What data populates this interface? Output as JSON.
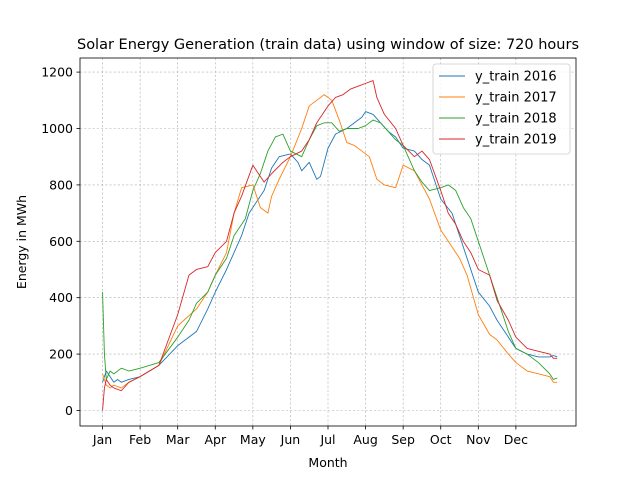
{
  "chart_data": {
    "type": "line",
    "title": "Solar Energy Generation (train data) using window of size: 720 hours",
    "xlabel": "Month",
    "ylabel": "Energy in MWh",
    "x_ticks": [
      "Jan",
      "Feb",
      "Mar",
      "Apr",
      "May",
      "Jun",
      "Jul",
      "Aug",
      "Sep",
      "Oct",
      "Nov",
      "Dec"
    ],
    "y_ticks": [
      0,
      200,
      400,
      600,
      800,
      1000,
      1200
    ],
    "xlim": [
      -0.6,
      12.6
    ],
    "ylim": [
      -55,
      1250
    ],
    "grid": true,
    "legend_position": "top-right",
    "series": [
      {
        "name": "y_train 2016",
        "color": "#1f77b4",
        "x": [
          0,
          0.1,
          0.2,
          0.3,
          0.4,
          0.5,
          0.7,
          1.0,
          1.5,
          2.0,
          2.5,
          2.8,
          3.0,
          3.3,
          3.5,
          3.7,
          3.9,
          4.0,
          4.3,
          4.5,
          4.7,
          5.0,
          5.2,
          5.3,
          5.5,
          5.7,
          5.8,
          6.0,
          6.2,
          6.5,
          6.7,
          6.9,
          7.0,
          7.2,
          7.4,
          7.6,
          7.8,
          8.0,
          8.3,
          8.5,
          8.7,
          9.0,
          9.3,
          9.5,
          9.7,
          10.0,
          10.3,
          10.5,
          10.8,
          11.0,
          11.3,
          11.6,
          11.9,
          12.0,
          12.1
        ],
        "y": [
          100,
          140,
          120,
          100,
          110,
          100,
          110,
          120,
          160,
          230,
          280,
          360,
          420,
          500,
          560,
          620,
          700,
          720,
          780,
          860,
          900,
          910,
          880,
          850,
          880,
          820,
          830,
          930,
          980,
          1000,
          1020,
          1040,
          1060,
          1050,
          1020,
          990,
          970,
          930,
          920,
          890,
          870,
          750,
          700,
          620,
          540,
          420,
          370,
          320,
          260,
          220,
          200,
          190,
          190,
          195,
          190
        ]
      },
      {
        "name": "y_train 2017",
        "color": "#ff7f0e",
        "x": [
          0,
          0.1,
          0.2,
          0.3,
          0.5,
          0.7,
          1.0,
          1.5,
          2.0,
          2.5,
          2.8,
          3.0,
          3.3,
          3.5,
          3.7,
          4.0,
          4.2,
          4.4,
          4.5,
          4.7,
          5.0,
          5.3,
          5.5,
          5.7,
          5.9,
          6.1,
          6.3,
          6.5,
          6.7,
          6.9,
          7.1,
          7.3,
          7.5,
          7.8,
          8.0,
          8.3,
          8.5,
          8.7,
          9.0,
          9.3,
          9.5,
          9.7,
          10.0,
          10.3,
          10.5,
          10.8,
          11.0,
          11.3,
          11.6,
          11.9,
          12.0,
          12.1
        ],
        "y": [
          130,
          90,
          80,
          90,
          80,
          100,
          120,
          160,
          300,
          360,
          420,
          480,
          560,
          700,
          790,
          800,
          720,
          700,
          760,
          820,
          900,
          1000,
          1080,
          1100,
          1120,
          1100,
          1030,
          950,
          940,
          920,
          900,
          820,
          800,
          790,
          870,
          850,
          800,
          750,
          640,
          580,
          540,
          480,
          340,
          270,
          250,
          200,
          170,
          140,
          130,
          120,
          100,
          100
        ]
      },
      {
        "name": "y_train 2018",
        "color": "#2ca02c",
        "x": [
          0,
          0.05,
          0.1,
          0.2,
          0.3,
          0.5,
          0.7,
          1.0,
          1.5,
          2.0,
          2.3,
          2.5,
          2.8,
          3.0,
          3.3,
          3.5,
          3.8,
          4.0,
          4.2,
          4.4,
          4.6,
          4.8,
          5.0,
          5.3,
          5.5,
          5.7,
          5.9,
          6.1,
          6.3,
          6.5,
          6.8,
          7.0,
          7.2,
          7.4,
          7.6,
          7.8,
          8.0,
          8.3,
          8.5,
          8.7,
          9.0,
          9.2,
          9.4,
          9.6,
          9.8,
          10.0,
          10.3,
          10.5,
          10.8,
          11.0,
          11.3,
          11.6,
          11.9,
          12.0,
          12.1
        ],
        "y": [
          420,
          200,
          110,
          140,
          130,
          150,
          140,
          150,
          170,
          260,
          320,
          380,
          420,
          480,
          540,
          620,
          680,
          780,
          840,
          920,
          970,
          980,
          920,
          900,
          960,
          1010,
          1020,
          1020,
          990,
          1000,
          1000,
          1010,
          1030,
          1020,
          990,
          960,
          940,
          850,
          810,
          780,
          790,
          800,
          780,
          720,
          680,
          600,
          480,
          400,
          280,
          220,
          200,
          170,
          130,
          110,
          115
        ]
      },
      {
        "name": "y_train 2019",
        "color": "#d62728",
        "x": [
          0,
          0.05,
          0.1,
          0.2,
          0.3,
          0.5,
          0.7,
          1.0,
          1.5,
          2.0,
          2.3,
          2.5,
          2.8,
          3.0,
          3.3,
          3.5,
          3.7,
          4.0,
          4.3,
          4.5,
          4.8,
          5.0,
          5.3,
          5.5,
          5.7,
          5.9,
          6.0,
          6.2,
          6.4,
          6.6,
          6.8,
          7.0,
          7.2,
          7.3,
          7.5,
          7.8,
          8.0,
          8.3,
          8.5,
          8.7,
          9.0,
          9.2,
          9.4,
          9.6,
          9.8,
          10.0,
          10.3,
          10.5,
          10.8,
          11.0,
          11.3,
          11.6,
          11.9,
          12.0,
          12.1
        ],
        "y": [
          0,
          80,
          110,
          90,
          80,
          70,
          100,
          120,
          160,
          340,
          480,
          500,
          510,
          560,
          600,
          700,
          760,
          870,
          810,
          840,
          880,
          900,
          920,
          960,
          1020,
          1060,
          1080,
          1110,
          1120,
          1140,
          1150,
          1160,
          1170,
          1110,
          1050,
          1000,
          940,
          900,
          920,
          890,
          780,
          700,
          660,
          600,
          560,
          500,
          480,
          390,
          320,
          260,
          220,
          210,
          200,
          185,
          185
        ]
      }
    ]
  }
}
